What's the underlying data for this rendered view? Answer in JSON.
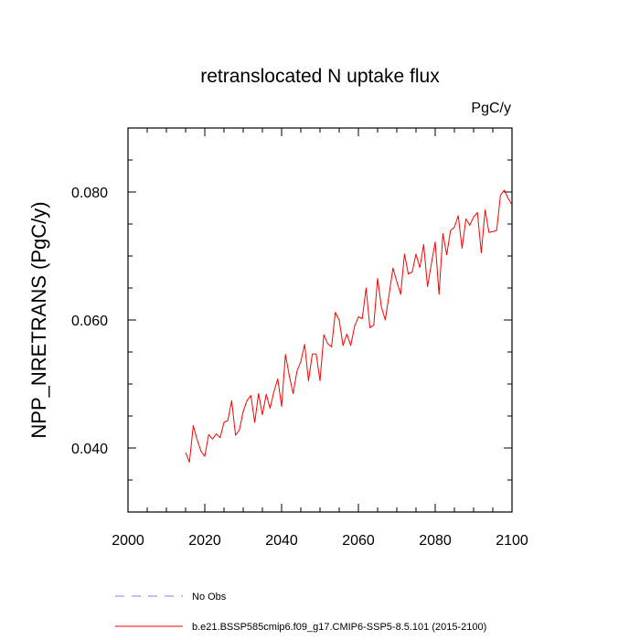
{
  "chart_data": {
    "type": "line",
    "title": "retranslocated N uptake flux",
    "units": "PgC/y",
    "xlabel": "",
    "ylabel": "NPP_NRETRANS  (PgC/y)",
    "xlim": [
      2000,
      2100
    ],
    "ylim": [
      0.03,
      0.09
    ],
    "x_ticks": [
      2000,
      2020,
      2040,
      2060,
      2080,
      2100
    ],
    "x_tick_labels": [
      "2000",
      "2020",
      "2040",
      "2060",
      "2080",
      "2100"
    ],
    "y_ticks": [
      0.04,
      0.06,
      0.08
    ],
    "y_tick_labels": [
      "0.040",
      "0.060",
      "0.080"
    ],
    "grid": false,
    "legend_position": "bottom",
    "legend": [
      {
        "label": "No Obs",
        "color": "#8080ff",
        "style": "dashed"
      },
      {
        "label": "b.e21.BSSP585cmip6.f09_g17.CMIP6-SSP5-8.5.101 (2015-2100)",
        "color": "#ff0000",
        "style": "solid"
      }
    ],
    "series": [
      {
        "name": "b.e21.BSSP585cmip6.f09_g17.CMIP6-SSP5-8.5.101 (2015-2100)",
        "color": "#ff0000",
        "x": [
          2015,
          2016,
          2017,
          2018,
          2019,
          2020,
          2021,
          2022,
          2023,
          2024,
          2025,
          2026,
          2027,
          2028,
          2029,
          2030,
          2031,
          2032,
          2033,
          2034,
          2035,
          2036,
          2037,
          2038,
          2039,
          2040,
          2041,
          2042,
          2043,
          2044,
          2045,
          2046,
          2047,
          2048,
          2049,
          2050,
          2051,
          2052,
          2053,
          2054,
          2055,
          2056,
          2057,
          2058,
          2059,
          2060,
          2061,
          2062,
          2063,
          2064,
          2065,
          2066,
          2067,
          2068,
          2069,
          2070,
          2071,
          2072,
          2073,
          2074,
          2075,
          2076,
          2077,
          2078,
          2079,
          2080,
          2081,
          2082,
          2083,
          2084,
          2085,
          2086,
          2087,
          2088,
          2089,
          2090,
          2091,
          2092,
          2093,
          2094,
          2095,
          2096,
          2097,
          2098,
          2099,
          2100
        ],
        "values": [
          0.0393,
          0.0378,
          0.0435,
          0.0413,
          0.0395,
          0.0387,
          0.0421,
          0.0414,
          0.0422,
          0.0416,
          0.044,
          0.0443,
          0.0474,
          0.042,
          0.0428,
          0.0457,
          0.0474,
          0.0482,
          0.044,
          0.0485,
          0.0452,
          0.0484,
          0.0462,
          0.0488,
          0.0508,
          0.0465,
          0.0546,
          0.0513,
          0.0485,
          0.052,
          0.0535,
          0.0562,
          0.0505,
          0.0547,
          0.0547,
          0.0505,
          0.0577,
          0.0563,
          0.0558,
          0.0612,
          0.06,
          0.056,
          0.0578,
          0.056,
          0.059,
          0.0605,
          0.0602,
          0.065,
          0.0588,
          0.0592,
          0.0665,
          0.062,
          0.06,
          0.064,
          0.0681,
          0.066,
          0.064,
          0.0703,
          0.0672,
          0.0675,
          0.0703,
          0.0682,
          0.0718,
          0.0652,
          0.0688,
          0.0722,
          0.064,
          0.0735,
          0.0702,
          0.074,
          0.0745,
          0.0763,
          0.0712,
          0.0758,
          0.0748,
          0.0761,
          0.0768,
          0.0705,
          0.0772,
          0.0737,
          0.0738,
          0.074,
          0.0795,
          0.0803,
          0.079,
          0.078
        ]
      }
    ]
  }
}
